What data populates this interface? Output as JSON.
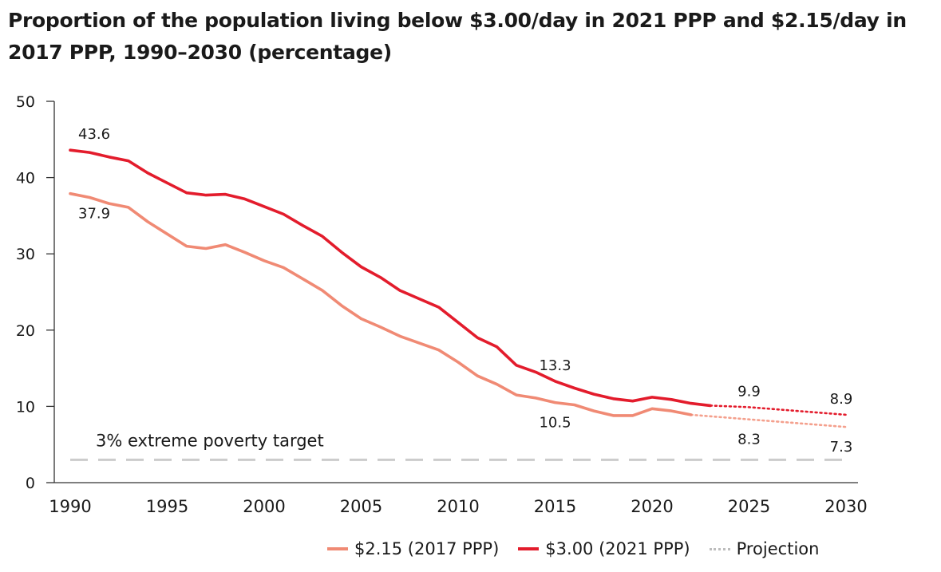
{
  "chart_data": {
    "type": "line",
    "title": "Proportion of the population living below $3.00/day in 2021 PPP and $2.15/day in 2017 PPP, 1990–2030 (percentage)",
    "xlim": [
      1990,
      2030
    ],
    "ylim": [
      0,
      50
    ],
    "x_ticks": [
      "1990",
      "1995",
      "2000",
      "2005",
      "2010",
      "2015",
      "2020",
      "2025",
      "2030"
    ],
    "y_ticks": [
      "0",
      "10",
      "20",
      "30",
      "40",
      "50"
    ],
    "grid": false,
    "legend_position": "bottom",
    "series": [
      {
        "name": "$2.15 (2017 PPP)",
        "color": "#f08a74",
        "style": "solid",
        "points": [
          [
            1990,
            37.9
          ],
          [
            1991,
            37.4
          ],
          [
            1992,
            36.6
          ],
          [
            1993,
            36.1
          ],
          [
            1994,
            34.2
          ],
          [
            1995,
            32.6
          ],
          [
            1996,
            31.0
          ],
          [
            1997,
            30.7
          ],
          [
            1998,
            31.2
          ],
          [
            1999,
            30.2
          ],
          [
            2000,
            29.1
          ],
          [
            2001,
            28.2
          ],
          [
            2002,
            26.7
          ],
          [
            2003,
            25.2
          ],
          [
            2004,
            23.2
          ],
          [
            2005,
            21.5
          ],
          [
            2006,
            20.4
          ],
          [
            2007,
            19.2
          ],
          [
            2008,
            18.3
          ],
          [
            2009,
            17.4
          ],
          [
            2010,
            15.8
          ],
          [
            2011,
            14.0
          ],
          [
            2012,
            12.9
          ],
          [
            2013,
            11.5
          ],
          [
            2014,
            11.1
          ],
          [
            2015,
            10.5
          ],
          [
            2016,
            10.2
          ],
          [
            2017,
            9.4
          ],
          [
            2018,
            8.8
          ],
          [
            2019,
            8.8
          ],
          [
            2020,
            9.7
          ],
          [
            2021,
            9.4
          ],
          [
            2022,
            8.9
          ]
        ]
      },
      {
        "name": "$3.00 (2021 PPP)",
        "color": "#e31c2c",
        "style": "solid",
        "points": [
          [
            1990,
            43.6
          ],
          [
            1991,
            43.3
          ],
          [
            1992,
            42.7
          ],
          [
            1993,
            42.2
          ],
          [
            1994,
            40.6
          ],
          [
            1995,
            39.3
          ],
          [
            1996,
            38.0
          ],
          [
            1997,
            37.7
          ],
          [
            1998,
            37.8
          ],
          [
            1999,
            37.2
          ],
          [
            2000,
            36.2
          ],
          [
            2001,
            35.2
          ],
          [
            2002,
            33.7
          ],
          [
            2003,
            32.3
          ],
          [
            2004,
            30.2
          ],
          [
            2005,
            28.3
          ],
          [
            2006,
            26.9
          ],
          [
            2007,
            25.2
          ],
          [
            2008,
            24.1
          ],
          [
            2009,
            23.0
          ],
          [
            2010,
            21.0
          ],
          [
            2011,
            19.0
          ],
          [
            2012,
            17.8
          ],
          [
            2013,
            15.4
          ],
          [
            2014,
            14.5
          ],
          [
            2015,
            13.3
          ],
          [
            2016,
            12.4
          ],
          [
            2017,
            11.6
          ],
          [
            2018,
            11.0
          ],
          [
            2019,
            10.7
          ],
          [
            2020,
            11.2
          ],
          [
            2021,
            10.9
          ],
          [
            2022,
            10.4
          ],
          [
            2023,
            10.1
          ]
        ]
      }
    ],
    "projections": [
      {
        "of": "$3.00 (2021 PPP)",
        "color": "#e31c2c",
        "points": [
          [
            2023,
            10.1
          ],
          [
            2025,
            9.9
          ],
          [
            2030,
            8.9
          ]
        ]
      },
      {
        "of": "$2.15 (2017 PPP)",
        "color": "#f4a08d",
        "points": [
          [
            2022,
            8.9
          ],
          [
            2025,
            8.3
          ],
          [
            2030,
            7.3
          ]
        ]
      }
    ],
    "reference_line": {
      "label": "3% extreme poverty target",
      "y": 3,
      "color": "#cccccc"
    },
    "data_labels": [
      {
        "text": "43.6",
        "x": 1990,
        "y": 43.6,
        "series": "$3.00 (2021 PPP)",
        "placement": "above"
      },
      {
        "text": "37.9",
        "x": 1990,
        "y": 37.9,
        "series": "$2.15 (2017 PPP)",
        "placement": "below"
      },
      {
        "text": "13.3",
        "x": 2015,
        "y": 13.3,
        "series": "$3.00 (2021 PPP)",
        "placement": "above"
      },
      {
        "text": "10.5",
        "x": 2015,
        "y": 10.5,
        "series": "$2.15 (2017 PPP)",
        "placement": "below"
      },
      {
        "text": "9.9",
        "x": 2025,
        "y": 9.9,
        "series": "$3.00 (2021 PPP)",
        "placement": "above"
      },
      {
        "text": "8.3",
        "x": 2025,
        "y": 8.3,
        "series": "$2.15 (2017 PPP)",
        "placement": "below"
      },
      {
        "text": "8.9",
        "x": 2030,
        "y": 8.9,
        "series": "$3.00 (2021 PPP)",
        "placement": "above"
      },
      {
        "text": "7.3",
        "x": 2030,
        "y": 7.3,
        "series": "$2.15 (2017 PPP)",
        "placement": "below"
      }
    ]
  },
  "legend": {
    "items": [
      {
        "label": "$2.15 (2017 PPP)",
        "color": "#f08a74",
        "style": "solid"
      },
      {
        "label": "$3.00 (2021 PPP)",
        "color": "#e31c2c",
        "style": "solid"
      },
      {
        "label": "Projection",
        "color": "#bdbdbd",
        "style": "dotted"
      }
    ]
  }
}
